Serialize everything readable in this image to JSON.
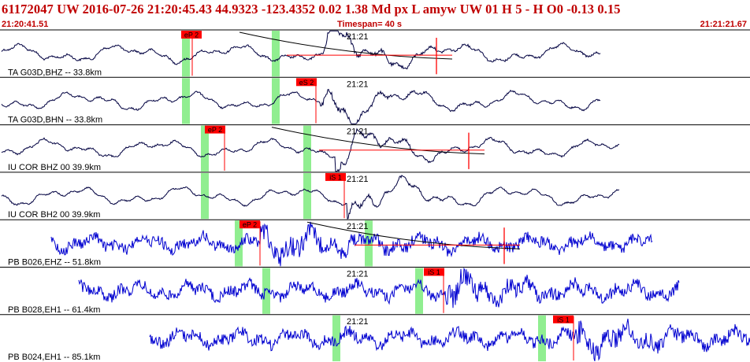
{
  "header": {
    "title": "61172047 UW 2016-07-26 21:20:45.43   44.9323 -123.4352   0.02  1.38 Md  px  L amyw     UW 01  H   5  -  H O0    -0.13  0.15",
    "start_time": "21:20:41.51",
    "timespan": "Timespan=  40 s",
    "end_time": "21:21:21.67"
  },
  "colors": {
    "header_text": "#c00000",
    "trace_black": "#000040",
    "trace_blue": "#0000d0",
    "pick": "#ff0000",
    "window": "#90ee90"
  },
  "traces": [
    {
      "label": "TA G03D,BHZ -- 33.8km",
      "time_label": "21:21",
      "pick": "eP 2",
      "color": "black",
      "coda": true
    },
    {
      "label": "TA G03D,BHN -- 33.8km",
      "time_label": "21:21",
      "pick": "eS 2",
      "color": "black",
      "coda": false
    },
    {
      "label": "IU COR BHZ 00 39.9km",
      "time_label": "21:21",
      "pick": "eP 2",
      "color": "black",
      "coda": true
    },
    {
      "label": "IU COR BH2 00 39.9km",
      "time_label": "21:21",
      "pick": "iS 1",
      "color": "black",
      "coda": false
    },
    {
      "label": "PB B026,EHZ -- 51.8km",
      "time_label": "21:21",
      "pick": "eP 2",
      "color": "blue",
      "coda": true
    },
    {
      "label": "PB B028,EH1 -- 61.4km",
      "time_label": "21:21",
      "pick": "iS 1",
      "color": "blue",
      "coda": false
    },
    {
      "label": "PB B024,EH1 -- 85.1km",
      "time_label": "21:21",
      "pick": "iS 1",
      "color": "blue",
      "coda": false
    }
  ]
}
